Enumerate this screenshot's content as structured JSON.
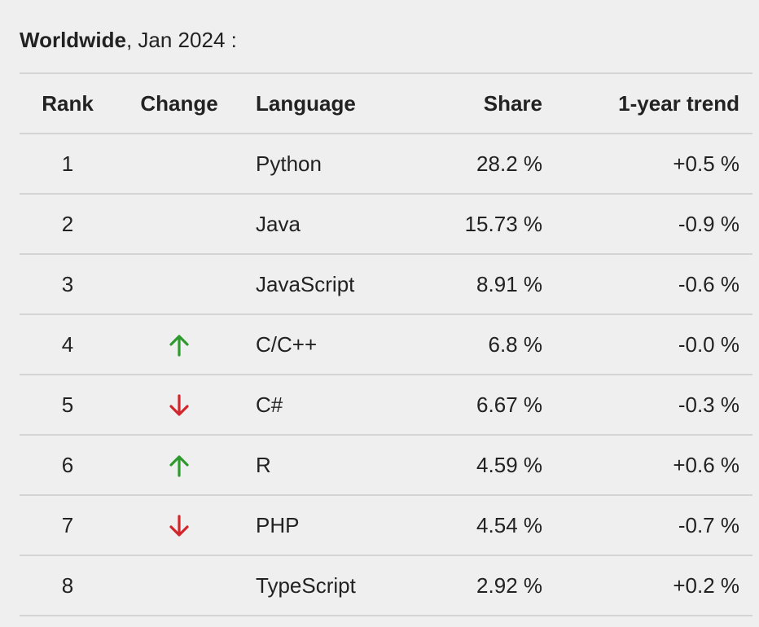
{
  "header": {
    "region": "Worldwide",
    "period": ", Jan 2024 :"
  },
  "table": {
    "columns": [
      "Rank",
      "Change",
      "Language",
      "Share",
      "1-year trend"
    ],
    "rows": [
      {
        "rank": "1",
        "change": "",
        "language": "Python",
        "share": "28.2 %",
        "trend": "+0.5 %"
      },
      {
        "rank": "2",
        "change": "",
        "language": "Java",
        "share": "15.73 %",
        "trend": "-0.9 %"
      },
      {
        "rank": "3",
        "change": "",
        "language": "JavaScript",
        "share": "8.91 %",
        "trend": "-0.6 %"
      },
      {
        "rank": "4",
        "change": "up",
        "language": "C/C++",
        "share": "6.8 %",
        "trend": "-0.0 %"
      },
      {
        "rank": "5",
        "change": "down",
        "language": "C#",
        "share": "6.67 %",
        "trend": "-0.3 %"
      },
      {
        "rank": "6",
        "change": "up",
        "language": "R",
        "share": "4.59 %",
        "trend": "+0.6 %"
      },
      {
        "rank": "7",
        "change": "down",
        "language": "PHP",
        "share": "4.54 %",
        "trend": "-0.7 %"
      },
      {
        "rank": "8",
        "change": "",
        "language": "TypeScript",
        "share": "2.92 %",
        "trend": "+0.2 %"
      }
    ]
  },
  "icons": {
    "up": "arrow-up-icon",
    "down": "arrow-down-icon"
  },
  "colors": {
    "up": "#2e9a2e",
    "down": "#d0262c"
  }
}
